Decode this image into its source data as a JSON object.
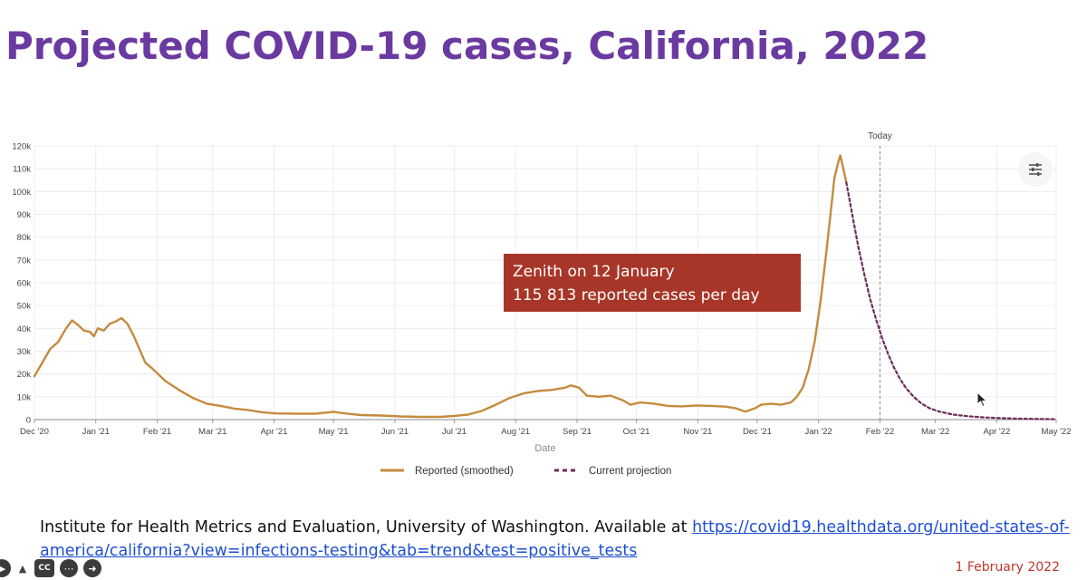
{
  "page": {
    "title": "Projected COVID-19 cases, California, 2022",
    "annotation_line1": "Zenith on 12 January",
    "annotation_line2": "115 813 reported cases per day",
    "source_text": "Institute for Health Metrics and Evaluation, University of Washington. Available at ",
    "source_link": "https://covid19.healthdata.org/united-states-of-america/california?view=infections-testing&tab=trend&test=positive_tests",
    "date": "1 February 2022",
    "player_cc": "CC"
  },
  "chart_data": {
    "type": "line",
    "xlabel": "Date",
    "ylabel": "",
    "x_range": [
      "2020-12-01",
      "2022-05-01"
    ],
    "ylim": [
      0,
      120000
    ],
    "y_ticks": [
      0,
      10000,
      20000,
      30000,
      40000,
      50000,
      60000,
      70000,
      80000,
      90000,
      100000,
      110000,
      120000
    ],
    "y_tick_labels": [
      "0",
      "10k",
      "20k",
      "30k",
      "40k",
      "50k",
      "60k",
      "70k",
      "80k",
      "90k",
      "100k",
      "110k",
      "120k"
    ],
    "x_ticks": [
      "2020-12-01",
      "2021-01-01",
      "2021-02-01",
      "2021-03-01",
      "2021-04-01",
      "2021-05-01",
      "2021-06-01",
      "2021-07-01",
      "2021-08-01",
      "2021-09-01",
      "2021-10-01",
      "2021-11-01",
      "2021-12-01",
      "2022-01-01",
      "2022-02-01",
      "2022-03-01",
      "2022-04-01",
      "2022-05-01"
    ],
    "x_tick_labels": [
      "Dec '20",
      "Jan '21",
      "Feb '21",
      "Mar '21",
      "Apr '21",
      "May '21",
      "Jun '21",
      "Jul '21",
      "Aug '21",
      "Sep '21",
      "Oct '21",
      "Nov '21",
      "Dec '21",
      "Jan '22",
      "Feb '22",
      "Mar '22",
      "Apr '22",
      "May '22"
    ],
    "grid": true,
    "legend_position": "bottom",
    "today_label": "Today",
    "today_date": "2022-02-01",
    "series": [
      {
        "name": "Reported (smoothed)",
        "color": "#c58b3e",
        "style": "solid",
        "points": [
          [
            "2020-12-01",
            19000
          ],
          [
            "2020-12-05",
            25000
          ],
          [
            "2020-12-09",
            31000
          ],
          [
            "2020-12-13",
            34000
          ],
          [
            "2020-12-17",
            40000
          ],
          [
            "2020-12-20",
            43500
          ],
          [
            "2020-12-23",
            41500
          ],
          [
            "2020-12-26",
            39000
          ],
          [
            "2020-12-29",
            38500
          ],
          [
            "2020-12-31",
            36500
          ],
          [
            "2021-01-02",
            40000
          ],
          [
            "2021-01-05",
            39000
          ],
          [
            "2021-01-08",
            42000
          ],
          [
            "2021-01-11",
            43000
          ],
          [
            "2021-01-14",
            44500
          ],
          [
            "2021-01-17",
            42000
          ],
          [
            "2021-01-20",
            37000
          ],
          [
            "2021-01-23",
            31000
          ],
          [
            "2021-01-26",
            25000
          ],
          [
            "2021-01-30",
            22000
          ],
          [
            "2021-02-05",
            17000
          ],
          [
            "2021-02-12",
            13000
          ],
          [
            "2021-02-19",
            9500
          ],
          [
            "2021-02-26",
            7000
          ],
          [
            "2021-03-05",
            6000
          ],
          [
            "2021-03-12",
            4800
          ],
          [
            "2021-03-19",
            4200
          ],
          [
            "2021-03-26",
            3200
          ],
          [
            "2021-04-02",
            2700
          ],
          [
            "2021-04-12",
            2600
          ],
          [
            "2021-04-22",
            2600
          ],
          [
            "2021-05-01",
            3400
          ],
          [
            "2021-05-07",
            2700
          ],
          [
            "2021-05-15",
            2000
          ],
          [
            "2021-05-25",
            1800
          ],
          [
            "2021-06-04",
            1400
          ],
          [
            "2021-06-14",
            1200
          ],
          [
            "2021-06-24",
            1200
          ],
          [
            "2021-07-01",
            1600
          ],
          [
            "2021-07-08",
            2200
          ],
          [
            "2021-07-15",
            3800
          ],
          [
            "2021-07-22",
            6500
          ],
          [
            "2021-07-29",
            9500
          ],
          [
            "2021-08-05",
            11500
          ],
          [
            "2021-08-12",
            12500
          ],
          [
            "2021-08-19",
            13000
          ],
          [
            "2021-08-26",
            14000
          ],
          [
            "2021-08-29",
            15000
          ],
          [
            "2021-09-02",
            14000
          ],
          [
            "2021-09-06",
            10500
          ],
          [
            "2021-09-12",
            10000
          ],
          [
            "2021-09-18",
            10500
          ],
          [
            "2021-09-24",
            8500
          ],
          [
            "2021-09-28",
            6500
          ],
          [
            "2021-10-03",
            7500
          ],
          [
            "2021-10-10",
            7000
          ],
          [
            "2021-10-17",
            6000
          ],
          [
            "2021-10-24",
            5800
          ],
          [
            "2021-11-01",
            6200
          ],
          [
            "2021-11-08",
            6000
          ],
          [
            "2021-11-15",
            5700
          ],
          [
            "2021-11-20",
            5000
          ],
          [
            "2021-11-25",
            3500
          ],
          [
            "2021-11-30",
            5000
          ],
          [
            "2021-12-03",
            6500
          ],
          [
            "2021-12-08",
            7000
          ],
          [
            "2021-12-13",
            6500
          ],
          [
            "2021-12-18",
            7500
          ],
          [
            "2021-12-21",
            10000
          ],
          [
            "2021-12-24",
            14000
          ],
          [
            "2021-12-27",
            22000
          ],
          [
            "2021-12-30",
            34000
          ],
          [
            "2022-01-02",
            52000
          ],
          [
            "2022-01-05",
            74000
          ],
          [
            "2022-01-07",
            90000
          ],
          [
            "2022-01-09",
            106000
          ],
          [
            "2022-01-11",
            113000
          ],
          [
            "2022-01-12",
            115813
          ],
          [
            "2022-01-13",
            112000
          ],
          [
            "2022-01-15",
            104000
          ]
        ]
      },
      {
        "name": "Current projection",
        "color": "#6d2a5a",
        "style": "dashed",
        "points": [
          [
            "2022-01-15",
            104000
          ],
          [
            "2022-01-18",
            90000
          ],
          [
            "2022-01-21",
            76000
          ],
          [
            "2022-01-24",
            64000
          ],
          [
            "2022-01-27",
            53000
          ],
          [
            "2022-01-30",
            44000
          ],
          [
            "2022-02-02",
            36000
          ],
          [
            "2022-02-05",
            29000
          ],
          [
            "2022-02-08",
            23000
          ],
          [
            "2022-02-11",
            18000
          ],
          [
            "2022-02-14",
            14000
          ],
          [
            "2022-02-18",
            10000
          ],
          [
            "2022-02-22",
            7000
          ],
          [
            "2022-02-26",
            5000
          ],
          [
            "2022-03-03",
            3500
          ],
          [
            "2022-03-10",
            2200
          ],
          [
            "2022-03-17",
            1500
          ],
          [
            "2022-03-25",
            1000
          ],
          [
            "2022-04-01",
            700
          ],
          [
            "2022-04-10",
            450
          ],
          [
            "2022-04-20",
            300
          ],
          [
            "2022-05-01",
            150
          ]
        ]
      }
    ]
  }
}
